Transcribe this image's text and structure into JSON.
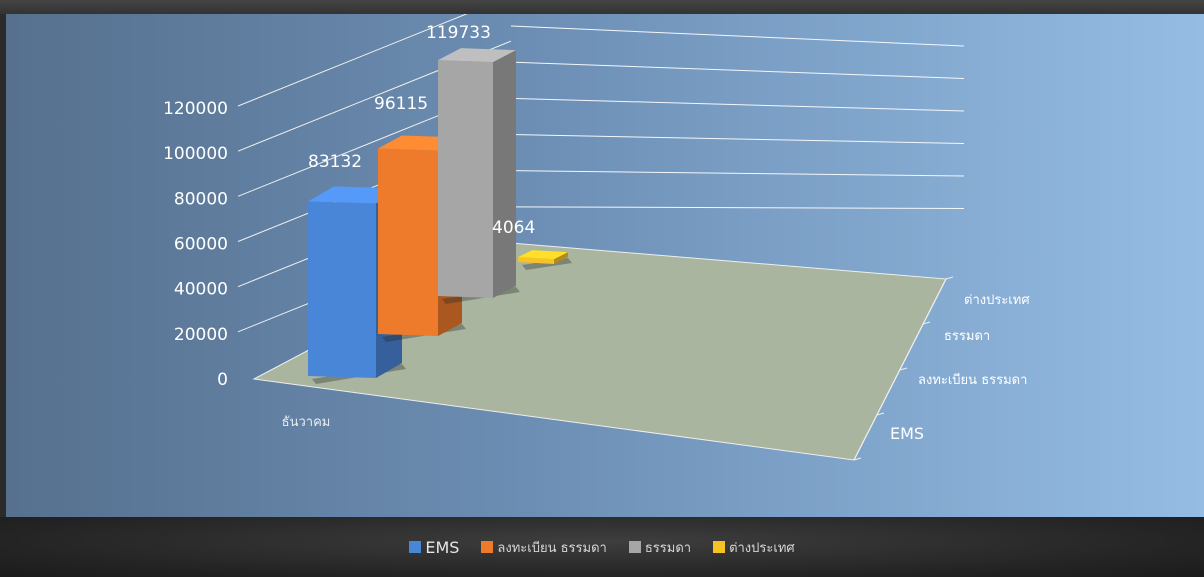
{
  "chart_data": {
    "type": "bar",
    "categories": [
      "ธันวาคม"
    ],
    "depth_labels": [
      "EMS",
      "ลงทะเบียน ธรรมดา",
      "ธรรมดา",
      "ต่างประเทศ"
    ],
    "series": [
      {
        "name": "EMS",
        "values": [
          83132
        ],
        "color": "#4a86d8"
      },
      {
        "name": "ลงทะเบียน ธรรมดา",
        "values": [
          96115
        ],
        "color": "#ee7a2c"
      },
      {
        "name": "ธรรมดา",
        "values": [
          119733
        ],
        "color": "#a6a6a6"
      },
      {
        "name": "ต่างประเทศ",
        "values": [
          4064
        ],
        "color": "#f7c324"
      }
    ],
    "yticks": [
      0,
      20000,
      40000,
      60000,
      80000,
      100000,
      120000
    ],
    "ylim": [
      0,
      120000
    ],
    "legend_position": "bottom",
    "grid": true
  }
}
